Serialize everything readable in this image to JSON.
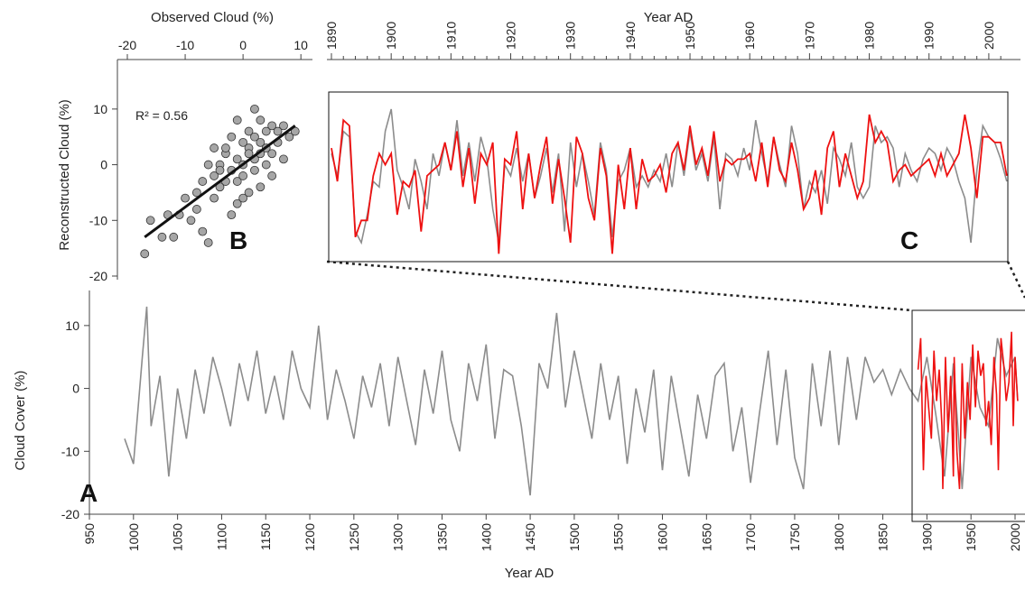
{
  "chart_data": [
    {
      "panel": "A",
      "type": "line",
      "xlabel": "Year AD",
      "ylabel": "Cloud Cover (%)",
      "xlim": [
        950,
        2000
      ],
      "ylim": [
        -20,
        15
      ],
      "xticks": [
        950,
        1000,
        1050,
        1100,
        1150,
        1200,
        1250,
        1300,
        1350,
        1400,
        1450,
        1500,
        1550,
        1600,
        1650,
        1700,
        1750,
        1800,
        1850,
        1900,
        1950,
        2000
      ],
      "yticks": [
        -20,
        -10,
        0,
        10
      ],
      "series": [
        {
          "color": "#8c8c8c",
          "x": [
            990,
            1000,
            1010,
            1015,
            1020,
            1030,
            1040,
            1050,
            1060,
            1070,
            1080,
            1090,
            1100,
            1110,
            1120,
            1130,
            1140,
            1150,
            1160,
            1170,
            1180,
            1190,
            1200,
            1210,
            1220,
            1230,
            1240,
            1250,
            1260,
            1270,
            1280,
            1290,
            1300,
            1310,
            1320,
            1330,
            1340,
            1350,
            1360,
            1370,
            1380,
            1390,
            1400,
            1410,
            1420,
            1430,
            1440,
            1450,
            1460,
            1470,
            1480,
            1490,
            1500,
            1510,
            1520,
            1530,
            1540,
            1550,
            1560,
            1570,
            1580,
            1590,
            1600,
            1610,
            1620,
            1630,
            1640,
            1650,
            1660,
            1670,
            1680,
            1690,
            1700,
            1710,
            1720,
            1730,
            1740,
            1750,
            1760,
            1770,
            1780,
            1790,
            1800,
            1810,
            1820,
            1830,
            1840,
            1850,
            1860,
            1870,
            1880,
            1890,
            1900,
            1910,
            1920,
            1930,
            1940,
            1950,
            1960,
            1970,
            1980,
            1990,
            2000,
            2003
          ],
          "y": [
            -8,
            -12,
            5,
            13,
            -6,
            2,
            -14,
            0,
            -8,
            3,
            -4,
            5,
            0,
            -6,
            4,
            -2,
            6,
            -4,
            2,
            -5,
            6,
            0,
            -3,
            10,
            -5,
            3,
            -2,
            -8,
            2,
            -3,
            4,
            -6,
            5,
            -2,
            -9,
            3,
            -4,
            6,
            -5,
            -10,
            4,
            -2,
            7,
            -8,
            3,
            2,
            -6,
            -17,
            4,
            0,
            12,
            -3,
            6,
            -1,
            -8,
            4,
            -5,
            2,
            -12,
            0,
            -7,
            3,
            -13,
            2,
            -6,
            -14,
            -1,
            -8,
            2,
            4,
            -10,
            -3,
            -15,
            -4,
            6,
            -9,
            3,
            -11,
            -16,
            4,
            -6,
            6,
            -9,
            5,
            -5,
            5,
            1,
            3,
            -1,
            3,
            0,
            -2,
            5,
            -4,
            -14,
            4,
            -16,
            5,
            -3,
            -6,
            8,
            2,
            5,
            -2
          ]
        },
        {
          "color": "#ee1111",
          "x": [
            1890,
            1893,
            1896,
            1899,
            1902,
            1905,
            1908,
            1911,
            1914,
            1917,
            1918,
            1921,
            1924,
            1927,
            1930,
            1931,
            1934,
            1937,
            1940,
            1943,
            1946,
            1949,
            1952,
            1955,
            1958,
            1961,
            1964,
            1967,
            1970,
            1973,
            1976,
            1979,
            1981,
            1984,
            1987,
            1990,
            1993,
            1996,
            1998,
            2000,
            2003
          ],
          "y": [
            3,
            8,
            -13,
            2,
            -3,
            -8,
            6,
            -2,
            3,
            -6,
            -16,
            5,
            -7,
            2,
            -14,
            5,
            -10,
            -16,
            4,
            -8,
            1,
            -5,
            7,
            -3,
            6,
            2,
            4,
            -6,
            -2,
            -9,
            5,
            -1,
            -13,
            8,
            4,
            -2,
            1,
            9,
            -6,
            5,
            -2
          ]
        }
      ]
    },
    {
      "panel": "B",
      "type": "scatter",
      "xlabel": "Observed Cloud (%)",
      "ylabel": "Reconstructed Cloud (%)",
      "xlim": [
        -20,
        12
      ],
      "ylim": [
        -20,
        15
      ],
      "xticks": [
        -20,
        -10,
        0,
        10
      ],
      "yticks": [
        -20,
        -10,
        0,
        10
      ],
      "annotation": "R² = 0.56",
      "point_color": "#a6a6a6",
      "x": [
        -17,
        -16,
        -14,
        -13,
        -12,
        -11,
        -10,
        -9,
        -8,
        -8,
        -7,
        -7,
        -6,
        -6,
        -5,
        -5,
        -5,
        -4,
        -4,
        -3,
        -3,
        -2,
        -2,
        -2,
        -1,
        -1,
        -1,
        0,
        0,
        0,
        1,
        1,
        1,
        2,
        2,
        2,
        3,
        3,
        3,
        4,
        4,
        4,
        5,
        5,
        5,
        6,
        6,
        7,
        7,
        8,
        9,
        -3,
        -1,
        1,
        3,
        -4,
        0,
        2
      ],
      "y": [
        -16,
        -10,
        -13,
        -9,
        -13,
        -9,
        -6,
        -10,
        -8,
        -5,
        -3,
        -12,
        -14,
        0,
        -2,
        -6,
        3,
        -4,
        0,
        2,
        -3,
        -1,
        5,
        -9,
        1,
        8,
        -3,
        0,
        4,
        -2,
        3,
        -5,
        6,
        1,
        -1,
        10,
        4,
        2,
        -4,
        6,
        0,
        3,
        7,
        2,
        -2,
        4,
        6,
        1,
        7,
        5,
        6,
        3,
        -7,
        2,
        8,
        -1,
        -6,
        5
      ],
      "fit_line": {
        "x": [
          -17,
          9
        ],
        "y": [
          -13,
          7
        ]
      }
    },
    {
      "panel": "C",
      "type": "line",
      "xlabel": "Year AD",
      "xlim": [
        1890,
        2005
      ],
      "ylim": [
        -20,
        15
      ],
      "xticks": [
        1890,
        1900,
        1910,
        1920,
        1930,
        1940,
        1950,
        1960,
        1970,
        1980,
        1990,
        2000
      ],
      "series": [
        {
          "color": "#8c8c8c",
          "x": [
            1890,
            1891,
            1892,
            1893,
            1894,
            1895,
            1896,
            1897,
            1898,
            1899,
            1900,
            1901,
            1902,
            1903,
            1904,
            1905,
            1906,
            1907,
            1908,
            1909,
            1910,
            1911,
            1912,
            1913,
            1914,
            1915,
            1916,
            1917,
            1918,
            1919,
            1920,
            1921,
            1922,
            1923,
            1924,
            1925,
            1926,
            1927,
            1928,
            1929,
            1930,
            1931,
            1932,
            1933,
            1934,
            1935,
            1936,
            1937,
            1938,
            1939,
            1940,
            1941,
            1942,
            1943,
            1944,
            1945,
            1946,
            1947,
            1948,
            1949,
            1950,
            1951,
            1952,
            1953,
            1954,
            1955,
            1956,
            1957,
            1958,
            1959,
            1960,
            1961,
            1962,
            1963,
            1964,
            1965,
            1966,
            1967,
            1968,
            1969,
            1970,
            1971,
            1972,
            1973,
            1974,
            1975,
            1976,
            1977,
            1978,
            1979,
            1980,
            1981,
            1982,
            1983,
            1984,
            1985,
            1986,
            1987,
            1988,
            1989,
            1990,
            1991,
            1992,
            1993,
            1994,
            1995,
            1996,
            1997,
            1998,
            1999,
            2000,
            2001,
            2002,
            2003
          ],
          "y": [
            2,
            -2,
            6,
            5,
            -12,
            -14,
            -9,
            -3,
            -4,
            6,
            10,
            -1,
            -4,
            -8,
            1,
            -3,
            -8,
            2,
            -2,
            4,
            -1,
            8,
            -2,
            4,
            -3,
            5,
            1,
            -8,
            -14,
            0,
            -2,
            3,
            -3,
            2,
            -6,
            -2,
            3,
            -5,
            2,
            -12,
            4,
            -4,
            2,
            -3,
            -9,
            4,
            -1,
            -13,
            -3,
            -1,
            3,
            -4,
            -2,
            -4,
            -1,
            -3,
            2,
            -4,
            4,
            -2,
            6,
            -1,
            2,
            -3,
            5,
            -8,
            2,
            1,
            -2,
            3,
            -1,
            8,
            2,
            -3,
            5,
            0,
            -4,
            7,
            2,
            -8,
            -3,
            -5,
            -1,
            -7,
            3,
            1,
            -2,
            4,
            -4,
            -6,
            -4,
            7,
            4,
            5,
            3,
            -4,
            2,
            -1,
            -3,
            1,
            3,
            2,
            -1,
            3,
            1,
            -3,
            -6,
            -14,
            -1,
            7,
            5,
            4,
            1,
            -3
          ]
        },
        {
          "color": "#ee1111",
          "x": [
            1890,
            1891,
            1892,
            1893,
            1894,
            1895,
            1896,
            1897,
            1898,
            1899,
            1900,
            1901,
            1902,
            1903,
            1904,
            1905,
            1906,
            1907,
            1908,
            1909,
            1910,
            1911,
            1912,
            1913,
            1914,
            1915,
            1916,
            1917,
            1918,
            1919,
            1920,
            1921,
            1922,
            1923,
            1924,
            1925,
            1926,
            1927,
            1928,
            1929,
            1930,
            1931,
            1932,
            1933,
            1934,
            1935,
            1936,
            1937,
            1938,
            1939,
            1940,
            1941,
            1942,
            1943,
            1944,
            1945,
            1946,
            1947,
            1948,
            1949,
            1950,
            1951,
            1952,
            1953,
            1954,
            1955,
            1956,
            1957,
            1958,
            1959,
            1960,
            1961,
            1962,
            1963,
            1964,
            1965,
            1966,
            1967,
            1968,
            1969,
            1970,
            1971,
            1972,
            1973,
            1974,
            1975,
            1976,
            1977,
            1978,
            1979,
            1980,
            1981,
            1982,
            1983,
            1984,
            1985,
            1986,
            1987,
            1988,
            1989,
            1990,
            1991,
            1992,
            1993,
            1994,
            1995,
            1996,
            1997,
            1998,
            1999,
            2000,
            2001,
            2002,
            2003
          ],
          "y": [
            3,
            -3,
            8,
            7,
            -13,
            -10,
            -10,
            -2,
            2,
            0,
            2,
            -9,
            -3,
            -4,
            -1,
            -12,
            -2,
            -1,
            0,
            4,
            -1,
            6,
            -4,
            3,
            -7,
            2,
            0,
            4,
            -16,
            1,
            0,
            6,
            -8,
            2,
            -6,
            0,
            5,
            -7,
            1,
            -6,
            -14,
            5,
            2,
            -6,
            -10,
            3,
            -2,
            -16,
            0,
            -8,
            3,
            -8,
            1,
            -3,
            -2,
            0,
            -5,
            2,
            4,
            -1,
            7,
            0,
            3,
            -2,
            6,
            -3,
            1,
            0,
            1,
            1,
            2,
            -3,
            4,
            -4,
            5,
            -1,
            -3,
            4,
            -1,
            -8,
            -6,
            -1,
            -9,
            3,
            6,
            -4,
            2,
            -2,
            -6,
            -3,
            9,
            4,
            6,
            4,
            -3,
            -1,
            0,
            -2,
            -1,
            0,
            1,
            -2,
            2,
            -2,
            0,
            2,
            9,
            3,
            -6,
            5,
            5,
            4,
            4,
            -2
          ]
        }
      ]
    }
  ]
}
